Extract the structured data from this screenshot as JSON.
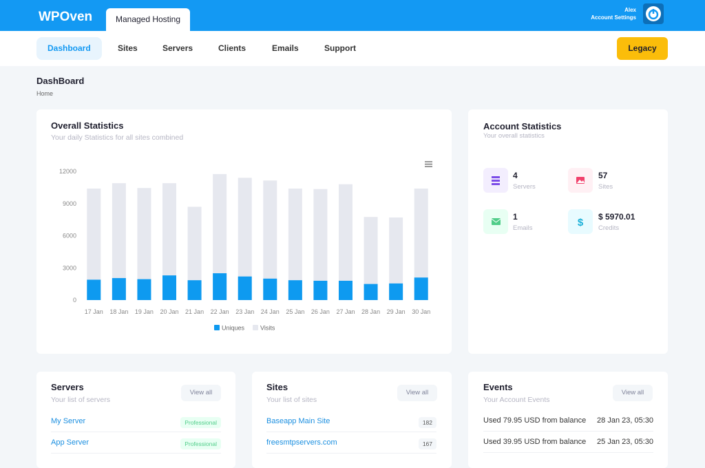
{
  "header": {
    "logo": "WPOven",
    "tab": "Managed Hosting",
    "user": "Alex",
    "account": "Account Settings"
  },
  "nav": {
    "items": [
      "Dashboard",
      "Sites",
      "Servers",
      "Clients",
      "Emails",
      "Support"
    ],
    "button": "Legacy"
  },
  "page": {
    "title": "DashBoard",
    "breadcrumb": "Home"
  },
  "chart_data": {
    "type": "bar",
    "title": "Overall Statistics",
    "subtitle": "Your daily Statistics for all sites combined",
    "categories": [
      "17 Jan",
      "18 Jan",
      "19 Jan",
      "20 Jan",
      "21 Jan",
      "22 Jan",
      "23 Jan",
      "24 Jan",
      "25 Jan",
      "26 Jan",
      "27 Jan",
      "28 Jan",
      "29 Jan",
      "30 Jan"
    ],
    "series": [
      {
        "name": "Visits",
        "color": "#e6e8ef",
        "values": [
          10400,
          10900,
          10450,
          10900,
          8700,
          11750,
          11400,
          11150,
          10400,
          10350,
          10800,
          7750,
          7700,
          10400
        ]
      },
      {
        "name": "Uniques",
        "color": "#0e9af0",
        "values": [
          1900,
          2050,
          1950,
          2300,
          1850,
          2500,
          2200,
          2000,
          1850,
          1800,
          1800,
          1500,
          1550,
          2100
        ]
      }
    ],
    "legend_order": [
      1,
      0
    ],
    "ylim": [
      0,
      12000
    ],
    "yticks": [
      0,
      3000,
      6000,
      9000,
      12000
    ],
    "grid": false
  },
  "account": {
    "title": "Account Statistics",
    "subtitle": "Your overall statistics",
    "stats": [
      {
        "value": "4",
        "label": "Servers"
      },
      {
        "value": "57",
        "label": "Sites"
      },
      {
        "value": "1",
        "label": "Emails"
      },
      {
        "value": "$ 5970.01",
        "label": "Credits"
      }
    ]
  },
  "servers": {
    "title": "Servers",
    "subtitle": "Your list of servers",
    "button": "View all",
    "rows": [
      [
        "My Server",
        "Professional"
      ],
      [
        "App Server",
        "Professional"
      ]
    ]
  },
  "sites": {
    "title": "Sites",
    "subtitle": "Your list of sites",
    "button": "View all",
    "rows": [
      [
        "Baseapp Main Site",
        "182"
      ],
      [
        "freesmtpservers.com",
        "167"
      ]
    ]
  },
  "events": {
    "title": "Events",
    "subtitle": "Your Account Events",
    "button": "View all",
    "rows": [
      [
        "Used 79.95 USD from balance",
        "28 Jan 23, 05:30"
      ],
      [
        "Used 39.95 USD from balance",
        "25 Jan 23, 05:30"
      ]
    ]
  }
}
